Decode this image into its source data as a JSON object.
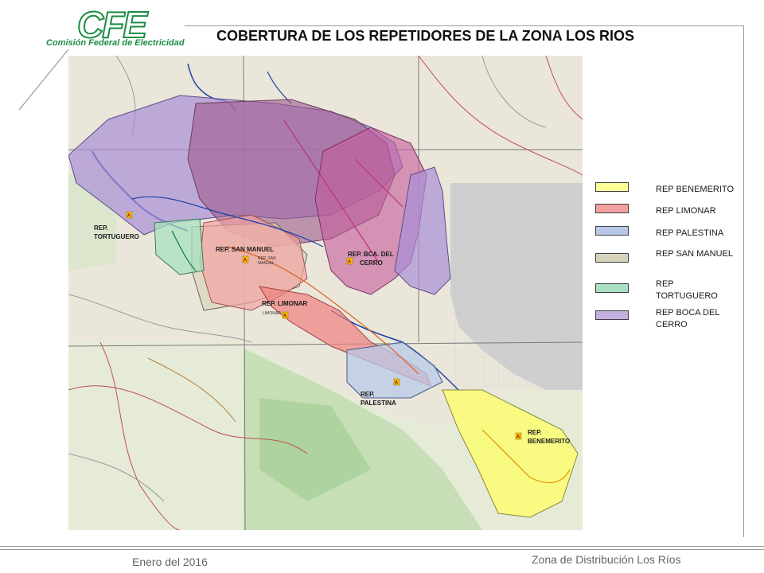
{
  "logo": {
    "mark": "CFE",
    "name": "Comisión Federal de Electricidad",
    "color": "#1c8c43"
  },
  "title": "COBERTURA DE LOS REPETIDORES DE LA ZONA LOS RIOS",
  "map": {
    "labels": {
      "tortuguero": [
        "REP.",
        "TORTUGUERO"
      ],
      "san_manuel": "REP. SAN MANUEL",
      "san_manuel_small": [
        "REP. SAN",
        "MANUEL"
      ],
      "boca_cerro": [
        "REP. BCA. DEL",
        "CERRO"
      ],
      "limonar": "REP. LIMONAR",
      "limonar_small": "LIMONAR",
      "palestina": [
        "REP.",
        "PALESTINA"
      ],
      "benemerito": [
        "REP.",
        "BENEMERITO"
      ]
    },
    "marker_glyph": "A"
  },
  "legend": [
    {
      "id": "benemerito",
      "label": "REP BENEMERITO",
      "color": "#ffff99"
    },
    {
      "id": "limonar",
      "label": "REP LIMONAR",
      "color": "#f4a0a0"
    },
    {
      "id": "palestina",
      "label": "REP PALESTINA",
      "color": "#b8c9e8"
    },
    {
      "id": "san-manuel",
      "label": "REP SAN MANUEL",
      "color": "#d8d4bc"
    },
    {
      "id": "tortuguero",
      "label": "REP TORTUGUERO",
      "color": "#a8e0c0"
    },
    {
      "id": "boca-del-cerro",
      "label": "REP BOCA DEL CERRO",
      "color": "#c4b0e0"
    }
  ],
  "footer": {
    "date": "Enero del 2016",
    "zone": "Zona de Distribución Los Ríos"
  }
}
